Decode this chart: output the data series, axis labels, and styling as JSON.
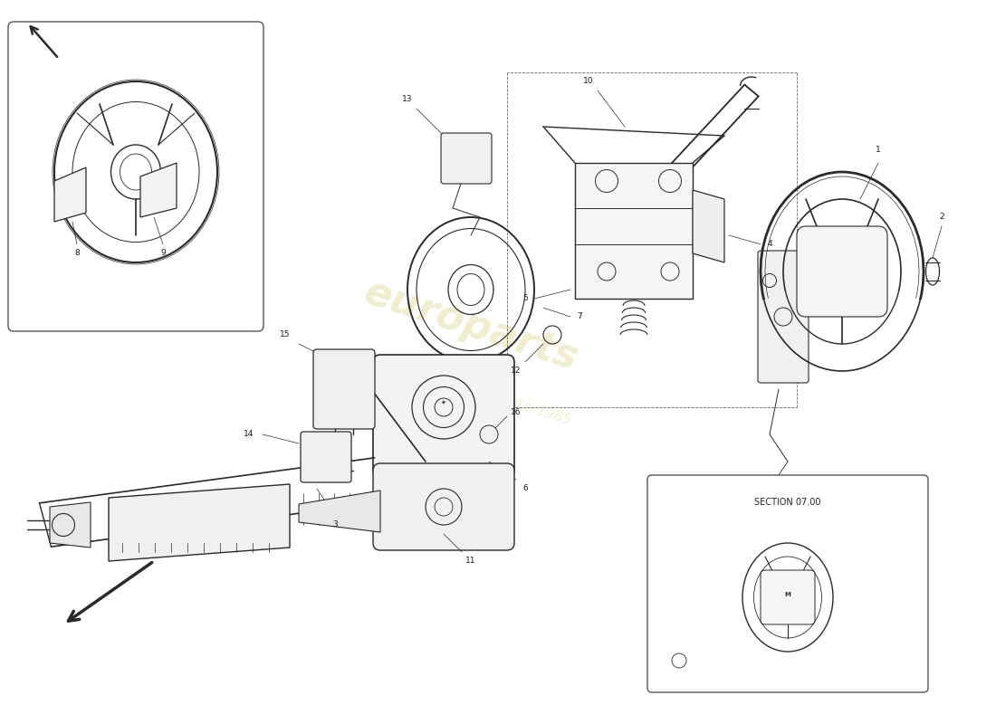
{
  "background_color": "#ffffff",
  "line_color": "#2a2a2a",
  "label_color": "#1a1a1a",
  "watermark_color1": "#c8b840",
  "watermark_color2": "#d4c060",
  "section_label": "SECTION 07.00",
  "fig_width": 11.0,
  "fig_height": 8.0,
  "dpi": 100,
  "xlim": [
    0,
    110
  ],
  "ylim": [
    0,
    80
  ]
}
